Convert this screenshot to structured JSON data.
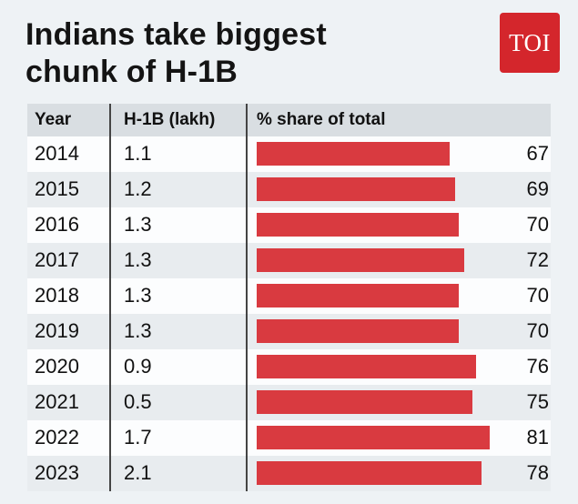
{
  "header": {
    "title_line1": "Indians take biggest",
    "title_line2": "chunk of H-1B",
    "logo_text": "TOI",
    "logo_color": "#d4262c"
  },
  "table": {
    "columns": [
      "Year",
      "H-1B (lakh)",
      "% share of total"
    ]
  },
  "chart_data": {
    "type": "bar",
    "orientation": "horizontal",
    "title": "Indians take biggest chunk of H-1B",
    "categories": [
      "2014",
      "2015",
      "2016",
      "2017",
      "2018",
      "2019",
      "2020",
      "2021",
      "2022",
      "2023"
    ],
    "series": [
      {
        "name": "H-1B (lakh)",
        "values": [
          1.1,
          1.2,
          1.3,
          1.3,
          1.3,
          1.3,
          0.9,
          0.5,
          1.7,
          2.1
        ]
      },
      {
        "name": "% share of total",
        "values": [
          67,
          69,
          70,
          72,
          70,
          70,
          76,
          75,
          81,
          78
        ]
      }
    ],
    "xlim": [
      0,
      85
    ],
    "bar_color": "#d93a40",
    "value_labels": true,
    "background": "#eef2f5",
    "row_alt_color": "#e8ecef",
    "header_bg": "#d9dee2",
    "legend": false,
    "grid": false
  }
}
